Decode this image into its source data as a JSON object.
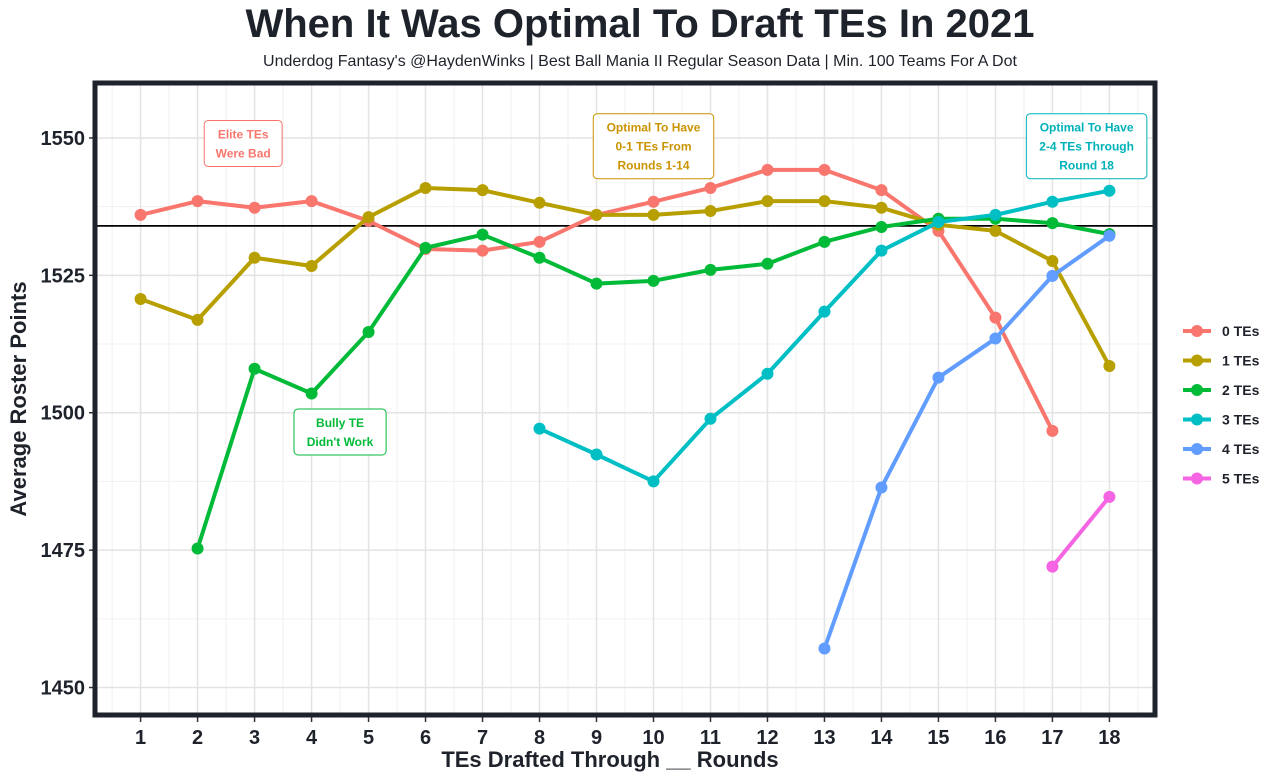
{
  "chart_data": {
    "type": "line",
    "title": "When It Was Optimal To Draft TEs In 2021",
    "subtitle": "Underdog Fantasy's @HaydenWinks | Best Ball Mania II Regular Season Data | Min. 100 Teams For A Dot",
    "xlabel": "TEs Drafted Through __ Rounds",
    "ylabel": "Average Roster Points",
    "xlim": [
      0.2,
      18.8
    ],
    "ylim": [
      1445,
      1560
    ],
    "x_ticks": [
      1,
      2,
      3,
      4,
      5,
      6,
      7,
      8,
      9,
      10,
      11,
      12,
      13,
      14,
      15,
      16,
      17,
      18
    ],
    "y_ticks": [
      1450,
      1475,
      1500,
      1525,
      1550
    ],
    "grid": true,
    "legend_position": "right",
    "reference_line": 1534,
    "series": [
      {
        "name": "0 TEs",
        "color": "#F8766D",
        "x": [
          1,
          2,
          3,
          4,
          5,
          6,
          7,
          8,
          9,
          10,
          11,
          12,
          13,
          14,
          15,
          16,
          17
        ],
        "y": [
          1536.0,
          1538.5,
          1537.3,
          1538.5,
          1534.9,
          1529.8,
          1529.5,
          1531.1,
          1536.0,
          1538.4,
          1540.9,
          1544.2,
          1544.2,
          1540.5,
          1533.1,
          1517.3,
          1496.7
        ]
      },
      {
        "name": "1 TEs",
        "color": "#B79F00",
        "x": [
          1,
          2,
          3,
          4,
          5,
          6,
          7,
          8,
          9,
          10,
          11,
          12,
          13,
          14,
          15,
          16,
          17,
          18
        ],
        "y": [
          1520.7,
          1516.9,
          1528.2,
          1526.7,
          1535.6,
          1540.9,
          1540.5,
          1538.2,
          1536.0,
          1536.0,
          1536.7,
          1538.5,
          1538.5,
          1537.3,
          1534.2,
          1533.1,
          1527.6,
          1508.5
        ]
      },
      {
        "name": "2 TEs",
        "color": "#00BA38",
        "x": [
          2,
          3,
          4,
          5,
          6,
          7,
          8,
          9,
          10,
          11,
          12,
          13,
          14,
          15,
          16,
          17,
          18
        ],
        "y": [
          1475.3,
          1508.0,
          1503.5,
          1514.7,
          1530.0,
          1532.4,
          1528.2,
          1523.5,
          1524.0,
          1526.0,
          1527.1,
          1531.1,
          1533.8,
          1535.3,
          1535.3,
          1534.5,
          1532.5
        ]
      },
      {
        "name": "3 TEs",
        "color": "#00BFC4",
        "x": [
          8,
          9,
          10,
          11,
          12,
          13,
          14,
          15,
          16,
          17,
          18
        ],
        "y": [
          1497.1,
          1492.4,
          1487.5,
          1498.9,
          1507.1,
          1518.4,
          1529.5,
          1534.7,
          1536.0,
          1538.4,
          1540.4
        ]
      },
      {
        "name": "4 TEs",
        "color": "#619CFF",
        "x": [
          13,
          14,
          15,
          16,
          17,
          18
        ],
        "y": [
          1457.1,
          1486.4,
          1506.4,
          1513.5,
          1524.9,
          1532.2
        ]
      },
      {
        "name": "5 TEs",
        "color": "#F564E3",
        "x": [
          17,
          18
        ],
        "y": [
          1472.0,
          1484.7
        ]
      }
    ],
    "annotations": [
      {
        "lines": [
          "Elite TEs",
          "Were Bad"
        ],
        "color": "#F8766D",
        "x": 2.8,
        "y": 1549
      },
      {
        "lines": [
          "Optimal To Have",
          "0-1 TEs From",
          "Rounds 1-14"
        ],
        "color": "#C99400",
        "x": 10,
        "y": 1548.5
      },
      {
        "lines": [
          "Optimal To Have",
          "2-4 TEs Through",
          "Round 18"
        ],
        "color": "#00B2B8",
        "x": 17.6,
        "y": 1548.5
      },
      {
        "lines": [
          "Bully TE",
          "Didn't Work"
        ],
        "color": "#00BA38",
        "x": 4.5,
        "y": 1496.5
      }
    ]
  }
}
